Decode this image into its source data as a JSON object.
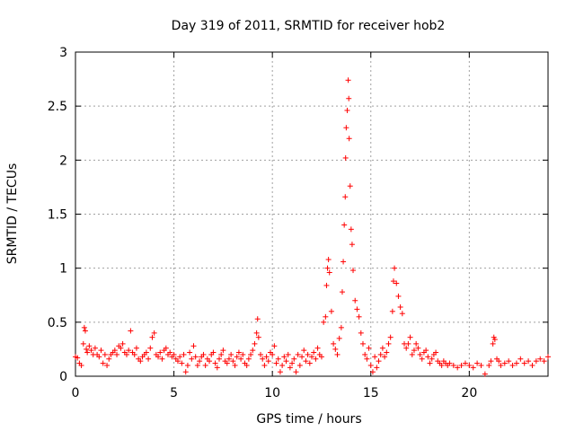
{
  "chart_data": {
    "type": "scatter",
    "title": "Day 319 of 2011, SRMTID for receiver hob2",
    "xlabel": "GPS time / hours",
    "ylabel": "SRMTID / TECUs",
    "xlim": [
      0,
      24
    ],
    "ylim": [
      0,
      3
    ],
    "xticks": [
      0,
      5,
      10,
      15,
      20
    ],
    "xtick_labels": [
      "0",
      "5",
      "10",
      "15",
      "20"
    ],
    "yticks": [
      0,
      0.5,
      1,
      1.5,
      2,
      2.5,
      3
    ],
    "ytick_labels": [
      "0",
      "0.5",
      "1",
      "1.5",
      "2",
      "2.5",
      "3"
    ],
    "grid": true,
    "marker": "+",
    "color": "#ff0000",
    "series": [
      {
        "name": "SRMTID",
        "points": [
          [
            0.0,
            0.18
          ],
          [
            0.1,
            0.17
          ],
          [
            0.2,
            0.12
          ],
          [
            0.3,
            0.1
          ],
          [
            0.4,
            0.3
          ],
          [
            0.45,
            0.45
          ],
          [
            0.5,
            0.42
          ],
          [
            0.55,
            0.25
          ],
          [
            0.6,
            0.22
          ],
          [
            0.7,
            0.28
          ],
          [
            0.8,
            0.24
          ],
          [
            0.9,
            0.2
          ],
          [
            1.0,
            0.26
          ],
          [
            1.1,
            0.2
          ],
          [
            1.2,
            0.18
          ],
          [
            1.3,
            0.24
          ],
          [
            1.4,
            0.12
          ],
          [
            1.5,
            0.2
          ],
          [
            1.6,
            0.1
          ],
          [
            1.7,
            0.16
          ],
          [
            1.8,
            0.2
          ],
          [
            1.9,
            0.22
          ],
          [
            2.0,
            0.24
          ],
          [
            2.1,
            0.2
          ],
          [
            2.2,
            0.28
          ],
          [
            2.3,
            0.26
          ],
          [
            2.4,
            0.3
          ],
          [
            2.5,
            0.22
          ],
          [
            2.6,
            0.2
          ],
          [
            2.7,
            0.24
          ],
          [
            2.8,
            0.42
          ],
          [
            2.9,
            0.22
          ],
          [
            3.0,
            0.2
          ],
          [
            3.1,
            0.26
          ],
          [
            3.2,
            0.16
          ],
          [
            3.3,
            0.14
          ],
          [
            3.4,
            0.18
          ],
          [
            3.5,
            0.2
          ],
          [
            3.6,
            0.22
          ],
          [
            3.7,
            0.16
          ],
          [
            3.8,
            0.26
          ],
          [
            3.9,
            0.36
          ],
          [
            4.0,
            0.4
          ],
          [
            4.1,
            0.2
          ],
          [
            4.2,
            0.18
          ],
          [
            4.3,
            0.22
          ],
          [
            4.4,
            0.16
          ],
          [
            4.5,
            0.24
          ],
          [
            4.6,
            0.26
          ],
          [
            4.7,
            0.2
          ],
          [
            4.8,
            0.22
          ],
          [
            4.9,
            0.18
          ],
          [
            5.0,
            0.2
          ],
          [
            5.1,
            0.16
          ],
          [
            5.2,
            0.14
          ],
          [
            5.3,
            0.18
          ],
          [
            5.4,
            0.12
          ],
          [
            5.5,
            0.2
          ],
          [
            5.6,
            0.04
          ],
          [
            5.7,
            0.1
          ],
          [
            5.8,
            0.22
          ],
          [
            5.9,
            0.16
          ],
          [
            6.0,
            0.28
          ],
          [
            6.1,
            0.18
          ],
          [
            6.2,
            0.1
          ],
          [
            6.3,
            0.14
          ],
          [
            6.4,
            0.18
          ],
          [
            6.5,
            0.2
          ],
          [
            6.6,
            0.1
          ],
          [
            6.7,
            0.16
          ],
          [
            6.8,
            0.14
          ],
          [
            6.9,
            0.2
          ],
          [
            7.0,
            0.22
          ],
          [
            7.1,
            0.12
          ],
          [
            7.2,
            0.08
          ],
          [
            7.3,
            0.16
          ],
          [
            7.4,
            0.2
          ],
          [
            7.5,
            0.24
          ],
          [
            7.6,
            0.14
          ],
          [
            7.7,
            0.12
          ],
          [
            7.8,
            0.16
          ],
          [
            7.9,
            0.2
          ],
          [
            8.0,
            0.14
          ],
          [
            8.1,
            0.1
          ],
          [
            8.2,
            0.18
          ],
          [
            8.3,
            0.22
          ],
          [
            8.4,
            0.16
          ],
          [
            8.5,
            0.2
          ],
          [
            8.6,
            0.12
          ],
          [
            8.7,
            0.1
          ],
          [
            8.8,
            0.16
          ],
          [
            8.9,
            0.2
          ],
          [
            9.0,
            0.24
          ],
          [
            9.1,
            0.3
          ],
          [
            9.2,
            0.4
          ],
          [
            9.25,
            0.53
          ],
          [
            9.3,
            0.36
          ],
          [
            9.4,
            0.2
          ],
          [
            9.5,
            0.16
          ],
          [
            9.6,
            0.1
          ],
          [
            9.7,
            0.18
          ],
          [
            9.8,
            0.14
          ],
          [
            9.9,
            0.22
          ],
          [
            10.0,
            0.2
          ],
          [
            10.1,
            0.28
          ],
          [
            10.2,
            0.12
          ],
          [
            10.3,
            0.16
          ],
          [
            10.4,
            0.04
          ],
          [
            10.5,
            0.1
          ],
          [
            10.6,
            0.18
          ],
          [
            10.7,
            0.14
          ],
          [
            10.8,
            0.2
          ],
          [
            10.9,
            0.08
          ],
          [
            11.0,
            0.12
          ],
          [
            11.1,
            0.16
          ],
          [
            11.2,
            0.04
          ],
          [
            11.3,
            0.2
          ],
          [
            11.4,
            0.1
          ],
          [
            11.5,
            0.18
          ],
          [
            11.6,
            0.24
          ],
          [
            11.7,
            0.14
          ],
          [
            11.8,
            0.2
          ],
          [
            11.9,
            0.12
          ],
          [
            12.0,
            0.18
          ],
          [
            12.1,
            0.22
          ],
          [
            12.2,
            0.16
          ],
          [
            12.3,
            0.26
          ],
          [
            12.4,
            0.2
          ],
          [
            12.5,
            0.18
          ],
          [
            12.6,
            0.5
          ],
          [
            12.7,
            0.55
          ],
          [
            12.75,
            0.84
          ],
          [
            12.8,
            1.0
          ],
          [
            12.85,
            1.08
          ],
          [
            12.9,
            0.96
          ],
          [
            13.0,
            0.6
          ],
          [
            13.1,
            0.3
          ],
          [
            13.2,
            0.25
          ],
          [
            13.3,
            0.2
          ],
          [
            13.4,
            0.35
          ],
          [
            13.5,
            0.45
          ],
          [
            13.55,
            0.78
          ],
          [
            13.6,
            1.06
          ],
          [
            13.65,
            1.4
          ],
          [
            13.7,
            1.66
          ],
          [
            13.72,
            2.02
          ],
          [
            13.75,
            2.3
          ],
          [
            13.8,
            2.46
          ],
          [
            13.85,
            2.74
          ],
          [
            13.88,
            2.57
          ],
          [
            13.9,
            2.2
          ],
          [
            13.95,
            1.76
          ],
          [
            14.0,
            1.36
          ],
          [
            14.05,
            1.22
          ],
          [
            14.1,
            0.98
          ],
          [
            14.2,
            0.7
          ],
          [
            14.3,
            0.62
          ],
          [
            14.4,
            0.55
          ],
          [
            14.5,
            0.4
          ],
          [
            14.6,
            0.3
          ],
          [
            14.7,
            0.2
          ],
          [
            14.8,
            0.16
          ],
          [
            14.9,
            0.26
          ],
          [
            15.0,
            0.1
          ],
          [
            15.1,
            0.04
          ],
          [
            15.2,
            0.18
          ],
          [
            15.3,
            0.08
          ],
          [
            15.4,
            0.14
          ],
          [
            15.5,
            0.2
          ],
          [
            15.6,
            0.26
          ],
          [
            15.7,
            0.18
          ],
          [
            15.8,
            0.22
          ],
          [
            15.9,
            0.3
          ],
          [
            16.0,
            0.36
          ],
          [
            16.1,
            0.6
          ],
          [
            16.15,
            0.88
          ],
          [
            16.2,
            1.0
          ],
          [
            16.3,
            0.86
          ],
          [
            16.4,
            0.74
          ],
          [
            16.5,
            0.64
          ],
          [
            16.6,
            0.58
          ],
          [
            16.7,
            0.3
          ],
          [
            16.8,
            0.26
          ],
          [
            16.9,
            0.3
          ],
          [
            17.0,
            0.36
          ],
          [
            17.1,
            0.2
          ],
          [
            17.2,
            0.24
          ],
          [
            17.3,
            0.3
          ],
          [
            17.4,
            0.26
          ],
          [
            17.5,
            0.2
          ],
          [
            17.6,
            0.16
          ],
          [
            17.7,
            0.22
          ],
          [
            17.8,
            0.24
          ],
          [
            17.9,
            0.18
          ],
          [
            18.0,
            0.12
          ],
          [
            18.1,
            0.16
          ],
          [
            18.2,
            0.2
          ],
          [
            18.3,
            0.22
          ],
          [
            18.4,
            0.14
          ],
          [
            18.5,
            0.12
          ],
          [
            18.6,
            0.1
          ],
          [
            18.7,
            0.14
          ],
          [
            18.8,
            0.12
          ],
          [
            18.9,
            0.1
          ],
          [
            19.0,
            0.12
          ],
          [
            19.2,
            0.1
          ],
          [
            19.4,
            0.08
          ],
          [
            19.6,
            0.1
          ],
          [
            19.8,
            0.12
          ],
          [
            20.0,
            0.1
          ],
          [
            20.2,
            0.08
          ],
          [
            20.4,
            0.12
          ],
          [
            20.6,
            0.1
          ],
          [
            20.8,
            0.02
          ],
          [
            21.0,
            0.1
          ],
          [
            21.1,
            0.14
          ],
          [
            21.2,
            0.3
          ],
          [
            21.25,
            0.36
          ],
          [
            21.3,
            0.34
          ],
          [
            21.4,
            0.16
          ],
          [
            21.5,
            0.14
          ],
          [
            21.6,
            0.1
          ],
          [
            21.8,
            0.12
          ],
          [
            22.0,
            0.14
          ],
          [
            22.2,
            0.1
          ],
          [
            22.4,
            0.12
          ],
          [
            22.6,
            0.16
          ],
          [
            22.8,
            0.12
          ],
          [
            23.0,
            0.14
          ],
          [
            23.2,
            0.1
          ],
          [
            23.4,
            0.14
          ],
          [
            23.6,
            0.16
          ],
          [
            23.8,
            0.14
          ],
          [
            24.0,
            0.18
          ]
        ]
      }
    ]
  }
}
